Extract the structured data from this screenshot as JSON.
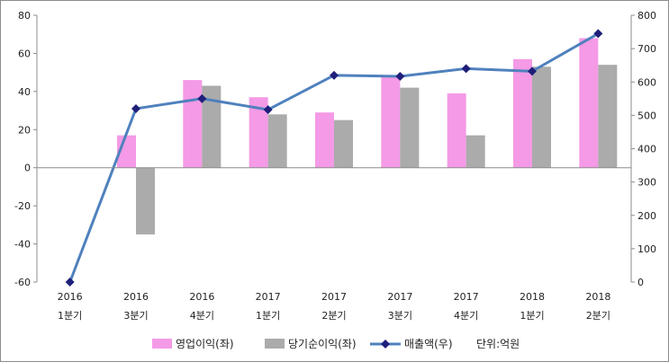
{
  "chart_data": {
    "type": "bar+line",
    "categories": [
      {
        "year": "2016",
        "quarter": "1분기"
      },
      {
        "year": "2016",
        "quarter": "3분기"
      },
      {
        "year": "2016",
        "quarter": "4분기"
      },
      {
        "year": "2017",
        "quarter": "1분기"
      },
      {
        "year": "2017",
        "quarter": "2분기"
      },
      {
        "year": "2017",
        "quarter": "3분기"
      },
      {
        "year": "2017",
        "quarter": "4분기"
      },
      {
        "year": "2018",
        "quarter": "1분기"
      },
      {
        "year": "2018",
        "quarter": "2분기"
      }
    ],
    "series": [
      {
        "name": "영업이익(좌)",
        "kind": "bar",
        "axis": "left",
        "color": "#f49ae6",
        "values": [
          0,
          17,
          46,
          37,
          29,
          48,
          39,
          57,
          68
        ]
      },
      {
        "name": "당기순이익(좌)",
        "kind": "bar",
        "axis": "left",
        "color": "#ababab",
        "values": [
          0,
          -35,
          43,
          28,
          25,
          42,
          17,
          53,
          54
        ]
      },
      {
        "name": "매출액(우)",
        "kind": "line",
        "axis": "right",
        "color": "#4f81bd",
        "marker_color": "#1f1f7a",
        "values": [
          0,
          520,
          550,
          517,
          620,
          617,
          640,
          632,
          745
        ]
      }
    ],
    "left_axis": {
      "min": -60,
      "max": 80,
      "ticks": [
        80,
        60,
        40,
        20,
        0,
        -20,
        -40,
        -60
      ]
    },
    "right_axis": {
      "min": 0,
      "max": 800,
      "ticks": [
        800,
        700,
        600,
        500,
        400,
        300,
        200,
        100,
        0
      ]
    },
    "legend": {
      "position": "bottom",
      "unit_note": "단위:억원"
    },
    "grid": false
  }
}
